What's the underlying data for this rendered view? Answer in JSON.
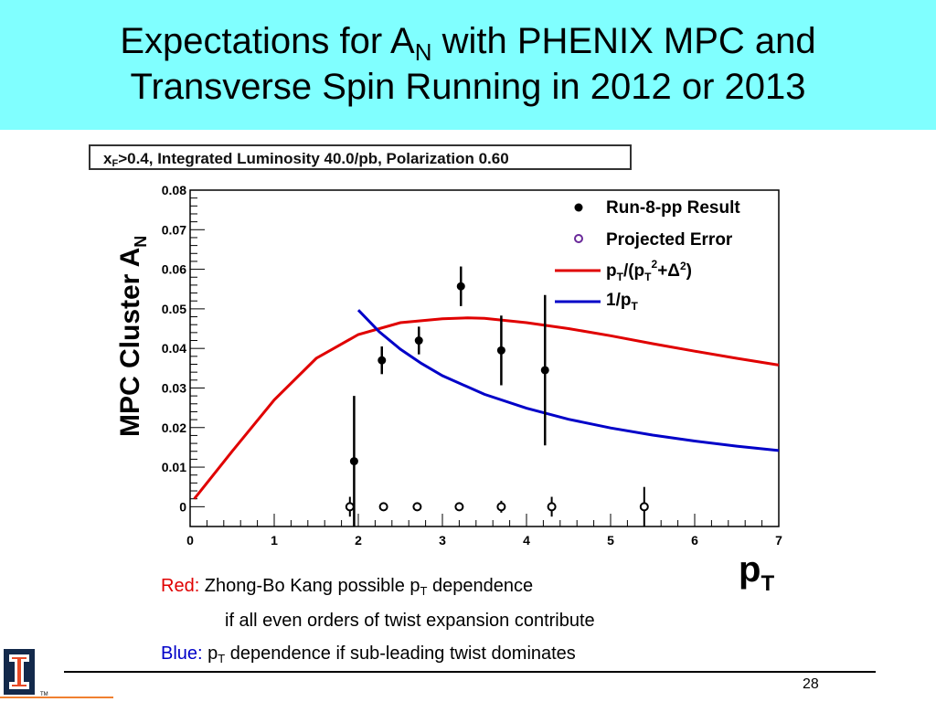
{
  "slide": {
    "title_line1_pre": "Expectations for A",
    "title_line1_sub": "N",
    "title_line1_post": " with PHENIX MPC and",
    "title_line2": "Transverse Spin Running in 2012 or 2013",
    "page_number": "28",
    "colors": {
      "title_band": "#80ffff",
      "red": "#e00000",
      "blue": "#0000c8",
      "accent_line": "#f08030"
    },
    "logo_icon": "university-illinois-block-i-icon",
    "logo_tm": "TM"
  },
  "caption": {
    "red_label": "Red:",
    "red_text_pre": " Zhong-Bo Kang possible p",
    "red_text_sub": "T",
    "red_text_post": " dependence",
    "red_line2": "if all even orders of twist expansion contribute",
    "blue_label": "Blue:",
    "blue_text_pre": " p",
    "blue_text_sub": "T",
    "blue_text_post": " dependence if sub-leading twist dominates"
  },
  "chart_data": {
    "type": "scatter",
    "info_box_pre": "x",
    "info_box_sub": "F",
    "info_box_post": ">0.4, Integrated Luminosity 40.0/pb, Polarization 0.60",
    "xlabel_main": "p",
    "xlabel_sub": "T",
    "ylabel_main": "MPC Cluster A",
    "ylabel_sub": "N",
    "xlim": [
      0,
      7
    ],
    "ylim": [
      -0.005,
      0.08
    ],
    "x_ticks": [
      0,
      1,
      2,
      3,
      4,
      5,
      6,
      7
    ],
    "y_ticks": [
      0,
      0.01,
      0.02,
      0.03,
      0.04,
      0.05,
      0.06,
      0.07,
      0.08
    ],
    "y_tick_labels": [
      "0",
      "0.01",
      "0.02",
      "0.03",
      "0.04",
      "0.05",
      "0.06",
      "0.07",
      "0.08"
    ],
    "legend_position": "top-right",
    "legend": [
      {
        "label": "Run-8-pp Result",
        "marker": "filled-circle"
      },
      {
        "label": "Projected Error",
        "marker": "open-circle"
      },
      {
        "label_pre": "p",
        "label_sub": "T",
        "label_post": "/(p",
        "label_sub2": "T",
        "label_sup2": "2",
        "label_post2": "+Δ",
        "label_sup3": "2",
        "label_end": ")",
        "line_color": "#e00000"
      },
      {
        "label_pre": "1/p",
        "label_sub": "T",
        "line_color": "#0000c8"
      }
    ],
    "series": [
      {
        "name": "Run-8-pp Result",
        "x": [
          1.95,
          2.28,
          2.72,
          3.22,
          3.7,
          4.22
        ],
        "y": [
          0.0115,
          0.037,
          0.042,
          0.0557,
          0.0395,
          0.0345
        ],
        "err": [
          0.0165,
          0.0035,
          0.0035,
          0.005,
          0.0088,
          0.019
        ]
      },
      {
        "name": "Projected Error",
        "x": [
          1.9,
          2.3,
          2.7,
          3.2,
          3.7,
          4.3,
          5.4
        ],
        "y": [
          0,
          0,
          0,
          0,
          0,
          0,
          0
        ],
        "err": [
          0.0025,
          0.0008,
          0.0008,
          0.0008,
          0.0015,
          0.0025,
          0.005
        ]
      },
      {
        "name": "pT/(pT^2+Δ^2)",
        "x": [
          0.05,
          0.5,
          1.0,
          1.5,
          2.0,
          2.5,
          3.0,
          3.3,
          3.5,
          4.0,
          4.5,
          5.0,
          5.5,
          6.0,
          6.5,
          7.0
        ],
        "y": [
          0.002,
          0.014,
          0.027,
          0.0375,
          0.0435,
          0.0465,
          0.0475,
          0.0477,
          0.0476,
          0.0465,
          0.045,
          0.0432,
          0.0412,
          0.0393,
          0.0375,
          0.0358
        ]
      },
      {
        "name": "1/pT",
        "x": [
          2.0,
          2.25,
          2.5,
          2.75,
          3.0,
          3.5,
          4.0,
          4.5,
          5.0,
          5.5,
          6.0,
          6.5,
          7.0
        ],
        "y": [
          0.0497,
          0.0442,
          0.0398,
          0.0362,
          0.0331,
          0.0284,
          0.0249,
          0.0221,
          0.0199,
          0.0181,
          0.0166,
          0.0153,
          0.0142
        ]
      }
    ]
  }
}
